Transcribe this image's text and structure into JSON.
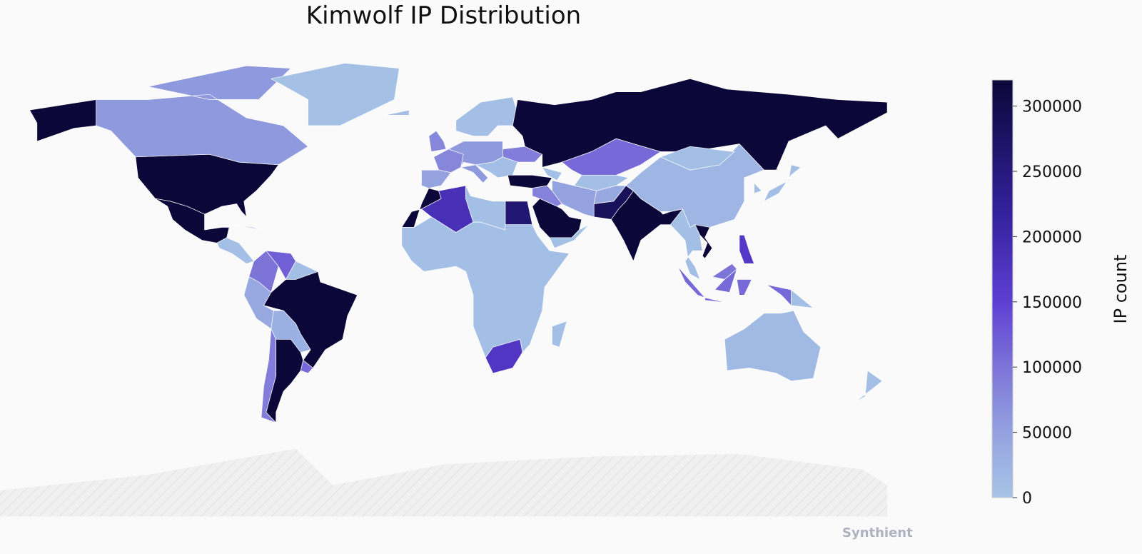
{
  "chart_data": {
    "type": "choropleth",
    "title": "Kimwolf IP Distribution",
    "colorbar": {
      "label": "IP count",
      "range": [
        0,
        320000
      ],
      "ticks": [
        0,
        50000,
        100000,
        150000,
        200000,
        250000,
        300000
      ],
      "tick_labels": [
        "0",
        "50000",
        "100000",
        "150000",
        "200000",
        "250000",
        "300000"
      ],
      "stops": [
        [
          0,
          "#a6c4e6"
        ],
        [
          50000,
          "#94a2e0"
        ],
        [
          100000,
          "#7d74d8"
        ],
        [
          150000,
          "#5e3fd3"
        ],
        [
          220000,
          "#32209a"
        ],
        [
          320000,
          "#0b0738"
        ]
      ]
    },
    "no_data_color": "#eeeeee",
    "border_color": "#ffffff",
    "countries": [
      {
        "name": "United States",
        "value": 320000
      },
      {
        "name": "Russia",
        "value": 320000
      },
      {
        "name": "Brazil",
        "value": 320000
      },
      {
        "name": "India",
        "value": 320000
      },
      {
        "name": "Argentina",
        "value": 320000
      },
      {
        "name": "Mexico",
        "value": 320000
      },
      {
        "name": "Saudi Arabia",
        "value": 320000
      },
      {
        "name": "Turkey",
        "value": 320000
      },
      {
        "name": "Vietnam",
        "value": 320000
      },
      {
        "name": "Morocco",
        "value": 320000
      },
      {
        "name": "Pakistan",
        "value": 285000
      },
      {
        "name": "Egypt",
        "value": 260000
      },
      {
        "name": "Algeria",
        "value": 185000
      },
      {
        "name": "South Africa",
        "value": 170000
      },
      {
        "name": "Philippines",
        "value": 165000
      },
      {
        "name": "Venezuela",
        "value": 120000
      },
      {
        "name": "Colombia",
        "value": 100000
      },
      {
        "name": "Kazakhstan",
        "value": 110000
      },
      {
        "name": "Indonesia",
        "value": 110000
      },
      {
        "name": "Malaysia",
        "value": 100000
      },
      {
        "name": "Chile",
        "value": 90000
      },
      {
        "name": "Ukraine",
        "value": 90000
      },
      {
        "name": "Iraq",
        "value": 85000
      },
      {
        "name": "France",
        "value": 80000
      },
      {
        "name": "United Kingdom",
        "value": 80000
      },
      {
        "name": "Canada",
        "value": 60000
      },
      {
        "name": "Iran",
        "value": 50000
      },
      {
        "name": "Spain",
        "value": 50000
      },
      {
        "name": "Central Europe",
        "value": 60000
      },
      {
        "name": "Uruguay",
        "value": 110000
      },
      {
        "name": "Peru",
        "value": 40000
      },
      {
        "name": "Afghanistan",
        "value": 40000
      },
      {
        "name": "Bolivia",
        "value": 30000
      },
      {
        "name": "China",
        "value": 20000
      },
      {
        "name": "Australia",
        "value": 15000
      },
      {
        "name": "Greenland",
        "value": 5000
      }
    ]
  },
  "watermark": "Synthient"
}
